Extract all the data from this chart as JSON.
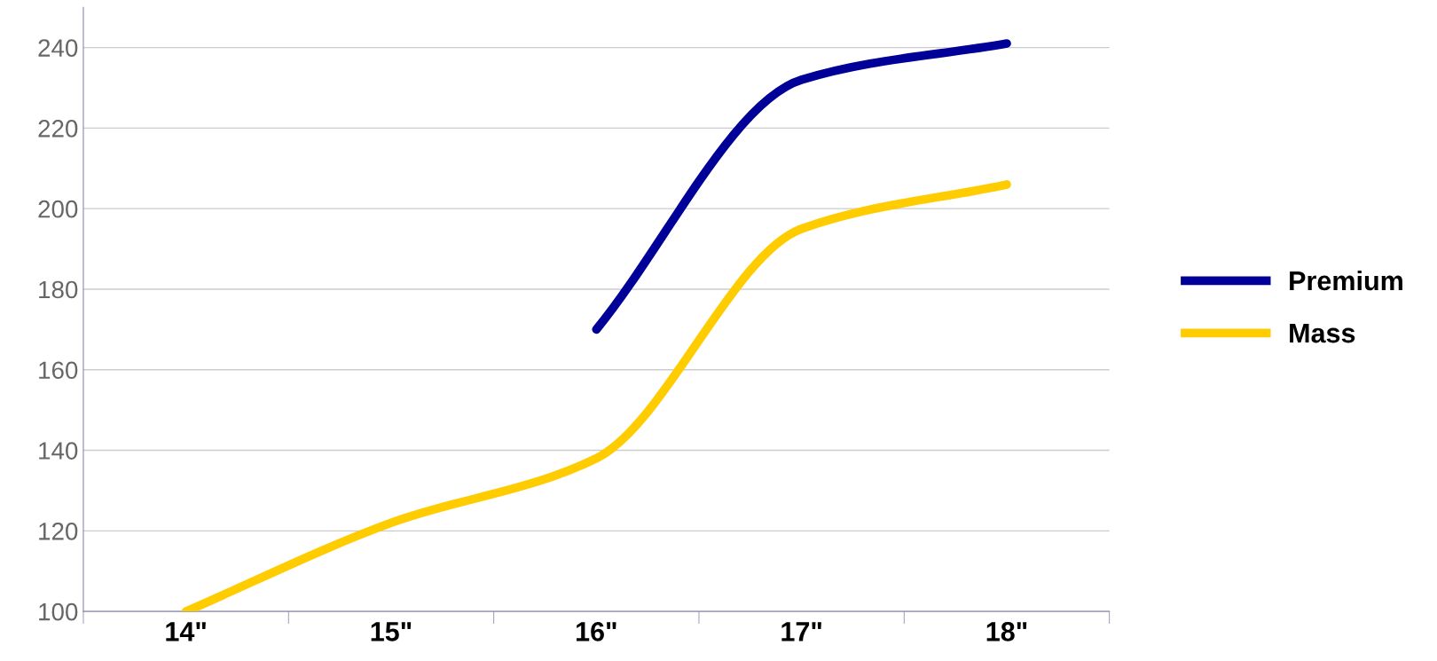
{
  "chart_data": {
    "type": "line",
    "categories": [
      "14\"",
      "15\"",
      "16\"",
      "17\"",
      "18\""
    ],
    "series": [
      {
        "name": "Premium",
        "color": "#000099",
        "values": [
          null,
          null,
          170,
          232,
          241
        ]
      },
      {
        "name": "Mass",
        "color": "#ffcc00",
        "values": [
          100,
          122,
          138,
          195,
          206
        ]
      }
    ],
    "ylim": [
      100,
      250
    ],
    "yticks": [
      100,
      120,
      140,
      160,
      180,
      200,
      220,
      240
    ],
    "grid": "y",
    "legend": "right",
    "marker": "none",
    "line_style": "solid"
  }
}
